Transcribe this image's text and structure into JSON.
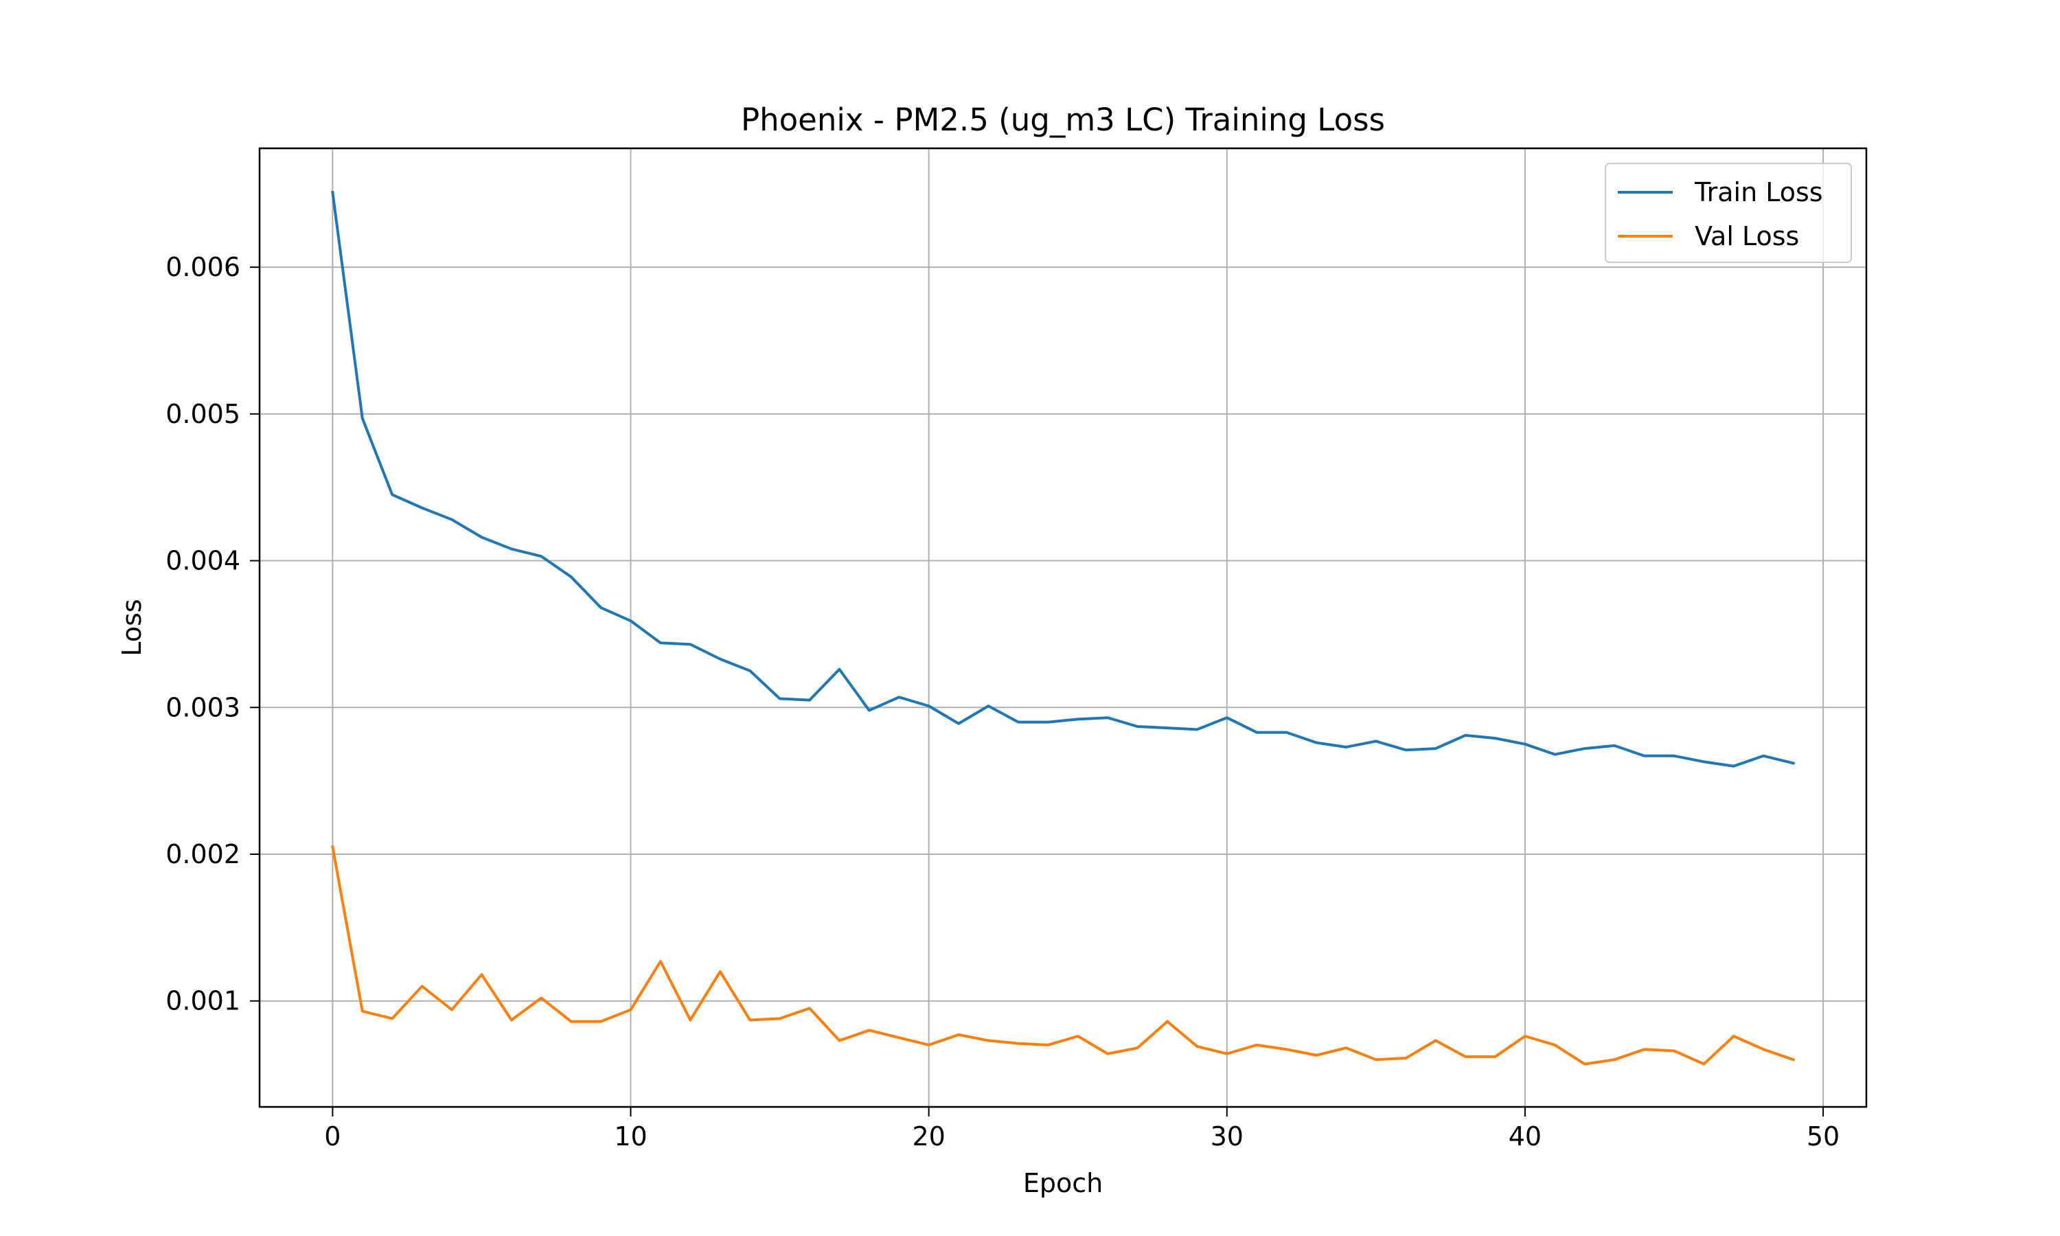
{
  "chart_data": {
    "type": "line",
    "title": "Phoenix - PM2.5 (ug_m3 LC) Training Loss",
    "xlabel": "Epoch",
    "ylabel": "Loss",
    "xlim": [
      -2.45,
      51.45
    ],
    "ylim": [
      0.000278,
      0.00681
    ],
    "xticks": [
      0,
      10,
      20,
      30,
      40,
      50
    ],
    "yticks": [
      0.001,
      0.002,
      0.003,
      0.004,
      0.005,
      0.006
    ],
    "ytick_labels": [
      "0.001",
      "0.002",
      "0.003",
      "0.004",
      "0.005",
      "0.006"
    ],
    "grid": true,
    "legend_position": "upper-right",
    "x": [
      0,
      1,
      2,
      3,
      4,
      5,
      6,
      7,
      8,
      9,
      10,
      11,
      12,
      13,
      14,
      15,
      16,
      17,
      18,
      19,
      20,
      21,
      22,
      23,
      24,
      25,
      26,
      27,
      28,
      29,
      30,
      31,
      32,
      33,
      34,
      35,
      36,
      37,
      38,
      39,
      40,
      41,
      42,
      43,
      44,
      45,
      46,
      47,
      48,
      49
    ],
    "series": [
      {
        "name": "Train Loss",
        "color": "#1f77b4",
        "values": [
          0.00651,
          0.00497,
          0.00445,
          0.00436,
          0.00428,
          0.00416,
          0.00408,
          0.00403,
          0.00389,
          0.00368,
          0.00359,
          0.00344,
          0.00343,
          0.00333,
          0.00325,
          0.00306,
          0.00305,
          0.00326,
          0.00298,
          0.00307,
          0.00301,
          0.00289,
          0.00301,
          0.0029,
          0.0029,
          0.00292,
          0.00293,
          0.00287,
          0.00286,
          0.00285,
          0.00293,
          0.00283,
          0.00283,
          0.00276,
          0.00273,
          0.00277,
          0.00271,
          0.00272,
          0.00281,
          0.00279,
          0.00275,
          0.00268,
          0.00272,
          0.00274,
          0.00267,
          0.00267,
          0.00263,
          0.0026,
          0.00267,
          0.00262
        ]
      },
      {
        "name": "Val Loss",
        "color": "#ff7f0e",
        "values": [
          0.00205,
          0.00093,
          0.00088,
          0.0011,
          0.00094,
          0.00118,
          0.00087,
          0.00102,
          0.00086,
          0.00086,
          0.00094,
          0.00127,
          0.00087,
          0.0012,
          0.00087,
          0.00088,
          0.00095,
          0.00073,
          0.0008,
          0.00075,
          0.0007,
          0.00077,
          0.00073,
          0.00071,
          0.0007,
          0.00076,
          0.00064,
          0.00068,
          0.00086,
          0.00069,
          0.00064,
          0.0007,
          0.00067,
          0.00063,
          0.00068,
          0.0006,
          0.00061,
          0.00073,
          0.00062,
          0.00062,
          0.00076,
          0.0007,
          0.00057,
          0.0006,
          0.00067,
          0.00066,
          0.00057,
          0.00076,
          0.00067,
          0.0006
        ]
      }
    ]
  }
}
